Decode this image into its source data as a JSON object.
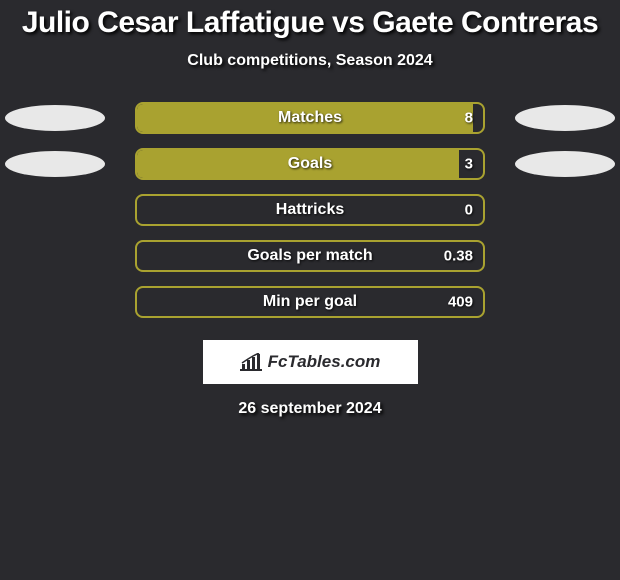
{
  "title": "Julio Cesar Laffatigue vs Gaete Contreras",
  "subtitle": "Club competitions, Season 2024",
  "date": "26 september 2024",
  "logo": "FcTables.com",
  "chart": {
    "type": "bar",
    "bar_colors": {
      "border": "#a9a230",
      "fill": "#a9a230"
    },
    "background_color": "#2a2a2e",
    "text_color": "#ffffff",
    "rows": [
      {
        "label": "Matches",
        "value": "8",
        "fill_pct": 97,
        "left_ellipse": true,
        "right_ellipse": true
      },
      {
        "label": "Goals",
        "value": "3",
        "fill_pct": 93,
        "left_ellipse": true,
        "right_ellipse": true
      },
      {
        "label": "Hattricks",
        "value": "0",
        "fill_pct": 0,
        "left_ellipse": false,
        "right_ellipse": false
      },
      {
        "label": "Goals per match",
        "value": "0.38",
        "fill_pct": 0,
        "left_ellipse": false,
        "right_ellipse": false
      },
      {
        "label": "Min per goal",
        "value": "409",
        "fill_pct": 0,
        "left_ellipse": false,
        "right_ellipse": false
      }
    ],
    "ellipse_color": "#e8e8e8"
  }
}
